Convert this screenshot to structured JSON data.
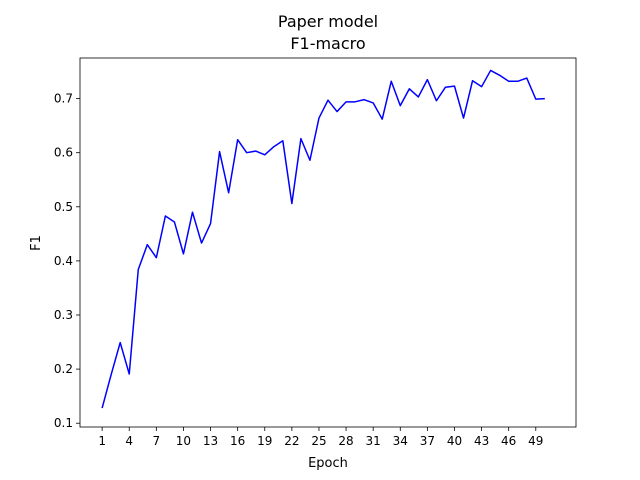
{
  "chart_data": {
    "type": "line",
    "title": "Paper model",
    "subtitle": "F1-macro",
    "xlabel": "Epoch",
    "ylabel": "F1",
    "xlim": [
      -1.45,
      53.45
    ],
    "ylim": [
      0.093,
      0.775
    ],
    "grid": false,
    "xticks": [
      1,
      4,
      7,
      10,
      13,
      16,
      19,
      22,
      25,
      28,
      31,
      34,
      37,
      40,
      43,
      46,
      49
    ],
    "yticks": [
      0.1,
      0.2,
      0.3,
      0.4,
      0.5,
      0.6,
      0.7
    ],
    "series": [
      {
        "color": "#0000ff",
        "x": [
          1,
          2,
          3,
          4,
          5,
          6,
          7,
          8,
          9,
          10,
          11,
          12,
          13,
          14,
          15,
          16,
          17,
          18,
          19,
          20,
          21,
          22,
          23,
          24,
          25,
          26,
          27,
          28,
          29,
          30,
          31,
          32,
          33,
          34,
          35,
          36,
          37,
          38,
          39,
          40,
          41,
          42,
          43,
          44,
          45,
          46,
          47,
          48,
          49,
          50
        ],
        "y": [
          0.128,
          0.19,
          0.249,
          0.191,
          0.384,
          0.43,
          0.406,
          0.483,
          0.472,
          0.413,
          0.49,
          0.433,
          0.469,
          0.602,
          0.526,
          0.624,
          0.6,
          0.603,
          0.596,
          0.611,
          0.622,
          0.506,
          0.626,
          0.586,
          0.664,
          0.697,
          0.676,
          0.694,
          0.694,
          0.698,
          0.692,
          0.662,
          0.732,
          0.687,
          0.718,
          0.703,
          0.735,
          0.696,
          0.721,
          0.723,
          0.664,
          0.733,
          0.722,
          0.752,
          0.743,
          0.732,
          0.732,
          0.738,
          0.699,
          0.7
        ]
      }
    ]
  }
}
